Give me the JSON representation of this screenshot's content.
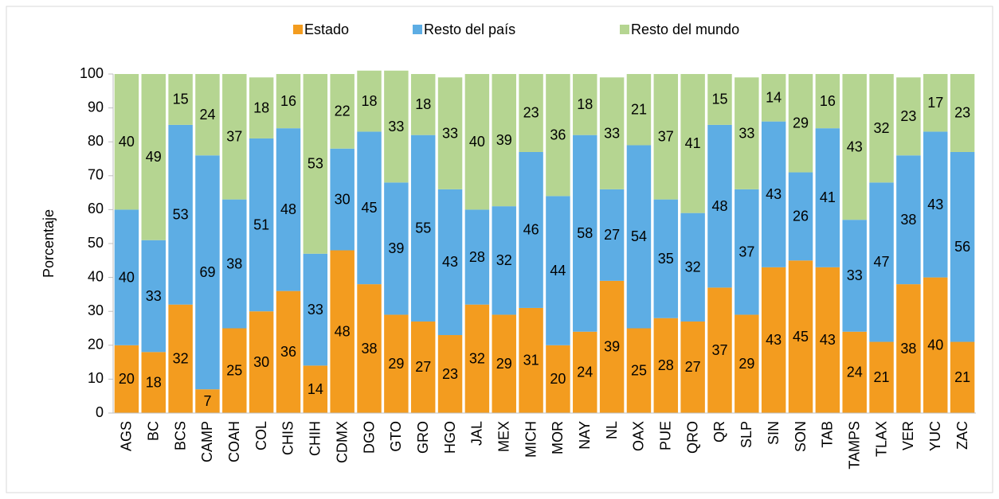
{
  "chart_data": {
    "type": "stacked_bar",
    "y_label": "Porcentaje",
    "categories": [
      "AGS",
      "BC",
      "BCS",
      "CAMP",
      "COAH",
      "COL",
      "CHIS",
      "CHIH",
      "CDMX",
      "DGO",
      "GTO",
      "GRO",
      "HGO",
      "JAL",
      "MEX",
      "MICH",
      "MOR",
      "NAY",
      "NL",
      "OAX",
      "PUE",
      "QRO",
      "QR",
      "SLP",
      "SIN",
      "SON",
      "TAB",
      "TAMPS",
      "TLAX",
      "VER",
      "YUC",
      "ZAC"
    ],
    "series": [
      {
        "name": "Estado",
        "color": "#f39c1f",
        "values": [
          20,
          18,
          32,
          7,
          25,
          30,
          36,
          14,
          48,
          38,
          29,
          27,
          23,
          32,
          29,
          31,
          20,
          24,
          39,
          25,
          28,
          27,
          37,
          29,
          43,
          45,
          43,
          24,
          21,
          38,
          40,
          21
        ]
      },
      {
        "name": "Resto del país",
        "color": "#5dade4",
        "values": [
          40,
          33,
          53,
          69,
          38,
          51,
          48,
          33,
          30,
          45,
          39,
          55,
          43,
          28,
          32,
          46,
          44,
          58,
          27,
          54,
          35,
          32,
          48,
          37,
          43,
          26,
          41,
          33,
          47,
          38,
          43,
          56
        ]
      },
      {
        "name": "Resto del mundo",
        "color": "#b5d591",
        "values": [
          40,
          49,
          15,
          24,
          37,
          18,
          16,
          53,
          22,
          18,
          33,
          18,
          33,
          40,
          39,
          23,
          36,
          18,
          33,
          21,
          37,
          41,
          15,
          33,
          14,
          29,
          16,
          43,
          32,
          23,
          17,
          23
        ]
      }
    ],
    "ylim": [
      0,
      100
    ],
    "yticks": [
      0,
      10,
      20,
      30,
      40,
      50,
      60,
      70,
      80,
      90,
      100
    ],
    "legend": "top"
  }
}
